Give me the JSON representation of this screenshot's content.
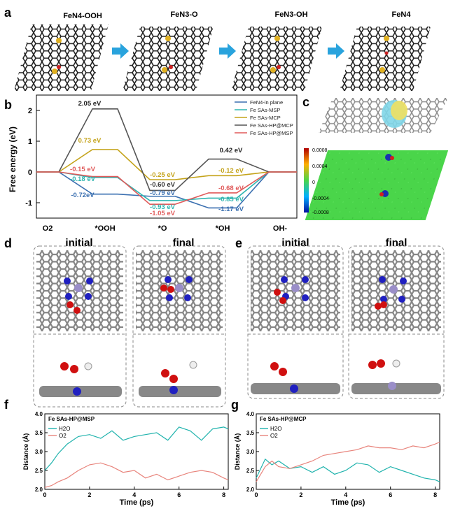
{
  "panel_letters": {
    "a": "a",
    "b": "b",
    "c": "c",
    "d": "d",
    "e": "e",
    "f": "f",
    "g": "g"
  },
  "panel_a": {
    "structures": [
      "FeN4-OOH",
      "FeN3-O",
      "FeN3-OH",
      "FeN4"
    ],
    "arrow_color": "#29a3dd"
  },
  "chart_data": [
    {
      "panel": "b",
      "type": "line",
      "title": "",
      "xlabel": "",
      "ylabel": "Free energy (eV)",
      "ylim": [
        -1.5,
        2.5
      ],
      "yticks": [
        -1,
        0,
        1,
        2
      ],
      "categories": [
        "O2",
        "*OOH",
        "*O",
        "*OH",
        "OH-"
      ],
      "legend_position": "top-right",
      "series": [
        {
          "name": "FeN4-in plane",
          "color": "#3a6fb0",
          "values": [
            0,
            -0.72,
            -0.79,
            -1.17,
            0
          ]
        },
        {
          "name": "Fe SAs-MSP",
          "color": "#2fb5b0",
          "values": [
            0,
            -0.18,
            -0.93,
            -0.85,
            0
          ]
        },
        {
          "name": "Fe SAs-MCP",
          "color": "#c4a31a",
          "values": [
            0,
            0.73,
            -0.25,
            -0.12,
            0
          ]
        },
        {
          "name": "Fe SAs-HP@MCP",
          "color": "#555555",
          "values": [
            0,
            2.05,
            -0.6,
            0.42,
            0
          ]
        },
        {
          "name": "Fe SAs-HP@MSP",
          "color": "#e05a5a",
          "values": [
            0,
            -0.15,
            -1.05,
            -0.68,
            0
          ]
        }
      ],
      "labels": [
        {
          "text": "2.05 eV",
          "color": "#222222"
        },
        {
          "text": "0.73 eV",
          "color": "#c4a31a"
        },
        {
          "text": "-0.15 eV",
          "color": "#e05a5a"
        },
        {
          "text": "-0.18 eV",
          "color": "#2fb5b0"
        },
        {
          "text": "-0.72eV",
          "color": "#3a6fb0"
        },
        {
          "text": "-0.25 eV",
          "color": "#c4a31a"
        },
        {
          "text": "-0.60 eV",
          "color": "#333333"
        },
        {
          "text": "-0.79 eV",
          "color": "#3a6fb0"
        },
        {
          "text": "-0.93 eV",
          "color": "#2fb5b0"
        },
        {
          "text": "-1.05 eV",
          "color": "#e05a5a"
        },
        {
          "text": "0.42 eV",
          "color": "#222222"
        },
        {
          "text": "-0.12 eV",
          "color": "#c4a31a"
        },
        {
          "text": "-0.68 eV",
          "color": "#e05a5a"
        },
        {
          "text": "-0.85 eV",
          "color": "#2fb5b0"
        },
        {
          "text": "-1.17 eV",
          "color": "#3a6fb0"
        }
      ]
    },
    {
      "panel": "f",
      "type": "line",
      "title": "Fe SAs-HP@MSP",
      "xlabel": "Time (ps)",
      "ylabel": "Distance (Å)",
      "xlim": [
        0,
        8.2
      ],
      "ylim": [
        2.0,
        4.0
      ],
      "xticks": [
        0,
        2,
        4,
        6,
        8
      ],
      "yticks": [
        2.0,
        2.5,
        3.0,
        3.5,
        4.0
      ],
      "legend_position": "top-left",
      "series": [
        {
          "name": "H2O",
          "color": "#20b3ad",
          "x": [
            0,
            0.3,
            0.6,
            1.0,
            1.5,
            2.0,
            2.5,
            3.0,
            3.5,
            4.0,
            4.5,
            5.0,
            5.5,
            6.0,
            6.5,
            7.0,
            7.5,
            8.0,
            8.2
          ],
          "values": [
            2.5,
            2.7,
            2.95,
            3.2,
            3.4,
            3.45,
            3.35,
            3.55,
            3.3,
            3.4,
            3.45,
            3.5,
            3.3,
            3.65,
            3.55,
            3.3,
            3.6,
            3.65,
            3.6
          ]
        },
        {
          "name": "O2",
          "color": "#e8847c",
          "x": [
            0,
            0.3,
            0.6,
            1.0,
            1.5,
            2.0,
            2.5,
            3.0,
            3.5,
            4.0,
            4.5,
            5.0,
            5.5,
            6.0,
            6.5,
            7.0,
            7.5,
            8.0,
            8.2
          ],
          "values": [
            2.05,
            2.1,
            2.2,
            2.3,
            2.5,
            2.65,
            2.7,
            2.6,
            2.45,
            2.5,
            2.3,
            2.4,
            2.25,
            2.35,
            2.45,
            2.5,
            2.45,
            2.3,
            2.25
          ]
        }
      ]
    },
    {
      "panel": "g",
      "type": "line",
      "title": "Fe SAs-HP@MCP",
      "xlabel": "Time (ps)",
      "ylabel": "Distance (Å)",
      "xlim": [
        0,
        8.2
      ],
      "ylim": [
        2.0,
        4.0
      ],
      "xticks": [
        0,
        2,
        4,
        6,
        8
      ],
      "yticks": [
        2.0,
        2.5,
        3.0,
        3.5,
        4.0
      ],
      "legend_position": "top-left",
      "series": [
        {
          "name": "H2O",
          "color": "#20b3ad",
          "x": [
            0,
            0.4,
            0.7,
            1.0,
            1.5,
            2.0,
            2.5,
            3.0,
            3.5,
            4.0,
            4.5,
            5.0,
            5.5,
            6.0,
            6.5,
            7.0,
            7.5,
            8.0,
            8.2
          ],
          "values": [
            2.3,
            2.8,
            2.65,
            2.75,
            2.55,
            2.6,
            2.45,
            2.6,
            2.4,
            2.5,
            2.7,
            2.65,
            2.45,
            2.6,
            2.5,
            2.4,
            2.3,
            2.25,
            2.2
          ]
        },
        {
          "name": "O2",
          "color": "#e8847c",
          "x": [
            0,
            0.4,
            0.7,
            1.0,
            1.5,
            2.0,
            2.5,
            3.0,
            3.5,
            4.0,
            4.5,
            5.0,
            5.5,
            6.0,
            6.5,
            7.0,
            7.5,
            8.0,
            8.2
          ],
          "values": [
            2.2,
            2.6,
            2.75,
            2.6,
            2.55,
            2.65,
            2.75,
            2.9,
            2.95,
            3.0,
            3.05,
            3.15,
            3.1,
            3.1,
            3.05,
            3.15,
            3.1,
            3.2,
            3.25
          ]
        }
      ]
    }
  ],
  "panel_c": {
    "colorbar_ticks": [
      "0.0008",
      "0.0004",
      "0",
      "-0.0004",
      "-0.0008"
    ],
    "map_color": "#4ad54a"
  },
  "panel_d": {
    "initial": "initial",
    "final": "final"
  },
  "panel_e": {
    "initial": "initial",
    "final": "final"
  }
}
